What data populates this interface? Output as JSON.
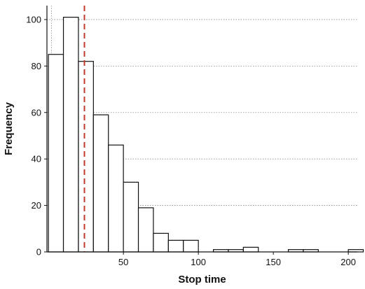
{
  "chart_data": {
    "type": "histogram",
    "title": "",
    "xlabel": "Stop time",
    "ylabel": "Frequency",
    "xlim": [
      -1,
      206
    ],
    "ylim": [
      0,
      106
    ],
    "x_ticks": [
      50,
      100,
      150,
      200
    ],
    "y_ticks": [
      0,
      20,
      40,
      60,
      80,
      100
    ],
    "grid": "horizontal dotted",
    "bin_width": 10,
    "bins": [
      {
        "start": 0,
        "end": 10,
        "count": 85
      },
      {
        "start": 10,
        "end": 20,
        "count": 101
      },
      {
        "start": 20,
        "end": 30,
        "count": 82
      },
      {
        "start": 30,
        "end": 40,
        "count": 59
      },
      {
        "start": 40,
        "end": 50,
        "count": 46
      },
      {
        "start": 50,
        "end": 60,
        "count": 30
      },
      {
        "start": 60,
        "end": 70,
        "count": 19
      },
      {
        "start": 70,
        "end": 80,
        "count": 8
      },
      {
        "start": 80,
        "end": 90,
        "count": 5
      },
      {
        "start": 90,
        "end": 100,
        "count": 5
      },
      {
        "start": 100,
        "end": 110,
        "count": 0
      },
      {
        "start": 110,
        "end": 120,
        "count": 1
      },
      {
        "start": 120,
        "end": 130,
        "count": 1
      },
      {
        "start": 130,
        "end": 140,
        "count": 2
      },
      {
        "start": 140,
        "end": 150,
        "count": 0
      },
      {
        "start": 150,
        "end": 160,
        "count": 0
      },
      {
        "start": 160,
        "end": 170,
        "count": 1
      },
      {
        "start": 170,
        "end": 180,
        "count": 1
      },
      {
        "start": 180,
        "end": 190,
        "count": 0
      },
      {
        "start": 190,
        "end": 200,
        "count": 0
      },
      {
        "start": 200,
        "end": 210,
        "count": 1
      }
    ],
    "reference_lines": [
      {
        "x": 2,
        "style": "dotted",
        "color": "#9a9a9a"
      },
      {
        "x": 24,
        "style": "dashed",
        "color": "#c0392b"
      }
    ],
    "bar_fill": "#ffffff",
    "bar_stroke": "#111111"
  }
}
